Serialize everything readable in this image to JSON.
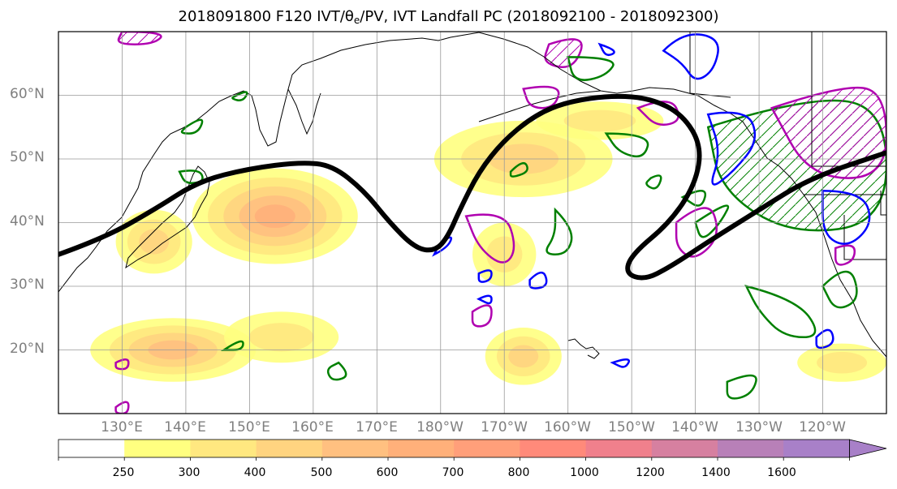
{
  "title": {
    "prefix": "2018091800 F120 IVT/θ",
    "sub": "e",
    "suffix": "/PV, IVT Landfall PC (2018092100 - 2018092300)"
  },
  "axes": {
    "lat_labels": [
      "60°N",
      "50°N",
      "40°N",
      "30°N",
      "20°N"
    ],
    "lon_labels": [
      "130°E",
      "140°E",
      "150°E",
      "160°E",
      "170°E",
      "180°W",
      "170°W",
      "160°W",
      "150°W",
      "140°W",
      "130°W",
      "120°W"
    ]
  },
  "colorbar": {
    "labels": [
      "250",
      "300",
      "400",
      "500",
      "600",
      "700",
      "800",
      "1000",
      "1200",
      "1400",
      "1600"
    ],
    "colors": [
      "#ffffff",
      "#ffff80",
      "#ffe880",
      "#ffd480",
      "#ffc080",
      "#ffb07a",
      "#ff9f7a",
      "#ff8a7a",
      "#f0808c",
      "#d680a0",
      "#b880b8",
      "#a880c8"
    ]
  },
  "chart_data": {
    "type": "map",
    "projection": "equirectangular",
    "lon_range": [
      120,
      250
    ],
    "lat_range": [
      10,
      70
    ],
    "lat_ticks": [
      60,
      50,
      40,
      30,
      20
    ],
    "lon_ticks": [
      130,
      140,
      150,
      160,
      170,
      180,
      190,
      200,
      210,
      220,
      230,
      240
    ],
    "ivt_levels": [
      250,
      300,
      400,
      500,
      600,
      700,
      800,
      1000,
      1200,
      1400,
      1600
    ],
    "landfall_pc_line": {
      "color": "#000000",
      "points": [
        [
          120,
          35
        ],
        [
          127,
          37.5
        ],
        [
          135,
          42
        ],
        [
          142,
          46.5
        ],
        [
          150,
          48.5
        ],
        [
          158,
          49.5
        ],
        [
          163,
          49
        ],
        [
          168,
          45
        ],
        [
          172,
          40
        ],
        [
          176,
          36
        ],
        [
          179,
          35.5
        ],
        [
          181,
          37.5
        ],
        [
          183,
          42
        ],
        [
          186,
          48
        ],
        [
          190,
          53
        ],
        [
          195,
          57
        ],
        [
          200,
          59
        ],
        [
          207,
          60
        ],
        [
          213,
          59.5
        ],
        [
          218,
          57
        ],
        [
          221,
          52
        ],
        [
          220,
          46
        ],
        [
          216,
          40
        ],
        [
          210,
          35
        ],
        [
          209,
          32
        ],
        [
          212,
          31
        ],
        [
          216,
          33
        ],
        [
          222,
          37
        ],
        [
          230,
          42
        ],
        [
          238,
          47
        ],
        [
          250,
          51
        ]
      ]
    },
    "ivt_regions": [
      {
        "center": [
          154,
          41
        ],
        "radius": [
          13,
          7.5
        ],
        "max": 600
      },
      {
        "center": [
          135,
          37
        ],
        "radius": [
          6,
          5
        ],
        "max": 400
      },
      {
        "center": [
          138,
          20
        ],
        "radius": [
          13,
          5
        ],
        "max": 500
      },
      {
        "center": [
          155,
          22
        ],
        "radius": [
          9,
          4
        ],
        "max": 300
      },
      {
        "center": [
          193,
          50
        ],
        "radius": [
          14,
          6
        ],
        "max": 400
      },
      {
        "center": [
          205,
          56
        ],
        "radius": [
          10,
          3
        ],
        "max": 300
      },
      {
        "center": [
          190,
          35
        ],
        "radius": [
          5,
          5
        ],
        "max": 300
      },
      {
        "center": [
          193,
          19
        ],
        "radius": [
          6,
          4.5
        ],
        "max": 400
      },
      {
        "center": [
          243,
          18
        ],
        "radius": [
          7,
          3
        ],
        "max": 300
      }
    ],
    "hatch_regions": [
      {
        "color": "#008000",
        "points": [
          [
            222,
            55
          ],
          [
            238,
            60
          ],
          [
            250,
            58
          ],
          [
            250,
            40
          ],
          [
            235,
            38
          ],
          [
            224,
            45
          ]
        ]
      },
      {
        "color": "#b000b0",
        "points": [
          [
            232,
            58
          ],
          [
            244,
            62
          ],
          [
            250,
            60
          ],
          [
            250,
            47
          ],
          [
            238,
            47
          ]
        ]
      },
      {
        "color": "#b000b0",
        "points": [
          [
            130,
            70
          ],
          [
            137,
            70
          ],
          [
            135,
            68
          ],
          [
            129,
            68
          ]
        ]
      },
      {
        "color": "#b000b0",
        "points": [
          [
            197,
            68
          ],
          [
            203,
            70
          ],
          [
            201,
            64
          ],
          [
            196,
            65
          ]
        ]
      }
    ],
    "contours": {
      "green": [
        [
          [
            148,
            60
          ],
          [
            150,
            61
          ],
          [
            149,
            59
          ],
          [
            147,
            59.5
          ]
        ],
        [
          [
            140,
            55
          ],
          [
            143,
            57
          ],
          [
            142,
            54
          ],
          [
            139,
            54
          ]
        ],
        [
          [
            139,
            48
          ],
          [
            142,
            48.5
          ],
          [
            143,
            46.5
          ],
          [
            140,
            46
          ]
        ],
        [
          [
            198,
            42
          ],
          [
            201,
            39
          ],
          [
            200,
            35
          ],
          [
            196,
            35
          ],
          [
            198,
            38
          ]
        ],
        [
          [
            206,
            54
          ],
          [
            213,
            54
          ],
          [
            212,
            50
          ],
          [
            208,
            51
          ]
        ],
        [
          [
            220,
            40
          ],
          [
            226,
            44
          ],
          [
            224,
            40
          ],
          [
            221,
            37
          ]
        ],
        [
          [
            228,
            30
          ],
          [
            236,
            28
          ],
          [
            240,
            22
          ],
          [
            234,
            22
          ],
          [
            230,
            26
          ]
        ],
        [
          [
            225,
            15
          ],
          [
            230,
            17
          ],
          [
            229,
            13
          ],
          [
            225,
            12
          ]
        ],
        [
          [
            164,
            18
          ],
          [
            166,
            16
          ],
          [
            163,
            15
          ],
          [
            162,
            17
          ]
        ],
        [
          [
            146,
            20
          ],
          [
            149,
            22
          ],
          [
            149,
            20
          ]
        ],
        [
          [
            191,
            48
          ],
          [
            193,
            50
          ],
          [
            194,
            48
          ],
          [
            191,
            47
          ]
        ],
        [
          [
            213,
            47
          ],
          [
            215,
            48
          ],
          [
            214,
            45
          ],
          [
            212,
            46
          ]
        ],
        [
          [
            200,
            66
          ],
          [
            208,
            66
          ],
          [
            206,
            63
          ],
          [
            201,
            62
          ]
        ],
        [
          [
            218,
            44
          ],
          [
            222,
            46
          ],
          [
            221,
            42
          ]
        ],
        [
          [
            240,
            30
          ],
          [
            244,
            34
          ],
          [
            246,
            28
          ],
          [
            242,
            26
          ]
        ]
      ],
      "blue": [
        [
          [
            215,
            67
          ],
          [
            218,
            70
          ],
          [
            224,
            69
          ],
          [
            223,
            64
          ],
          [
            220,
            62
          ],
          [
            218,
            65
          ]
        ],
        [
          [
            222,
            57
          ],
          [
            228,
            58
          ],
          [
            230,
            53
          ],
          [
            226,
            48
          ],
          [
            222,
            45
          ],
          [
            224,
            51
          ]
        ],
        [
          [
            240,
            45
          ],
          [
            246,
            45
          ],
          [
            248,
            40
          ],
          [
            244,
            36
          ],
          [
            240,
            38
          ]
        ],
        [
          [
            186,
            32
          ],
          [
            188,
            33
          ],
          [
            188,
            31
          ],
          [
            186,
            30.5
          ]
        ],
        [
          [
            205,
            68
          ],
          [
            208,
            67
          ],
          [
            206,
            66
          ]
        ],
        [
          [
            179,
            35
          ],
          [
            181,
            36
          ],
          [
            182,
            38
          ],
          [
            180,
            37
          ]
        ],
        [
          [
            194,
            31
          ],
          [
            196,
            33
          ],
          [
            197,
            30
          ],
          [
            194,
            29.5
          ]
        ],
        [
          [
            239,
            22
          ],
          [
            241,
            24
          ],
          [
            242,
            21
          ],
          [
            239,
            20
          ]
        ],
        [
          [
            207,
            18
          ],
          [
            210,
            19
          ],
          [
            209,
            17
          ]
        ],
        [
          [
            186,
            28
          ],
          [
            188,
            29
          ],
          [
            188,
            27
          ]
        ]
      ],
      "magenta": [
        [
          [
            184,
            41
          ],
          [
            190,
            42
          ],
          [
            192,
            36
          ],
          [
            190,
            33
          ],
          [
            186,
            36
          ]
        ],
        [
          [
            185,
            26
          ],
          [
            188,
            28
          ],
          [
            188,
            24
          ],
          [
            185,
            23.5
          ]
        ],
        [
          [
            129,
            18
          ],
          [
            131,
            19
          ],
          [
            131,
            17
          ],
          [
            129,
            17
          ]
        ],
        [
          [
            129,
            11
          ],
          [
            131,
            12.5
          ],
          [
            131,
            10
          ],
          [
            129,
            10
          ]
        ],
        [
          [
            217,
            40
          ],
          [
            222,
            44
          ],
          [
            224,
            38
          ],
          [
            220,
            34
          ],
          [
            217,
            36
          ]
        ],
        [
          [
            211,
            58
          ],
          [
            216,
            60
          ],
          [
            218,
            56
          ],
          [
            214,
            55
          ]
        ],
        [
          [
            193,
            61
          ],
          [
            199,
            62
          ],
          [
            198,
            58
          ],
          [
            194,
            58
          ]
        ],
        [
          [
            242,
            36
          ],
          [
            245,
            37
          ],
          [
            245,
            34
          ],
          [
            242,
            33
          ]
        ]
      ]
    }
  }
}
